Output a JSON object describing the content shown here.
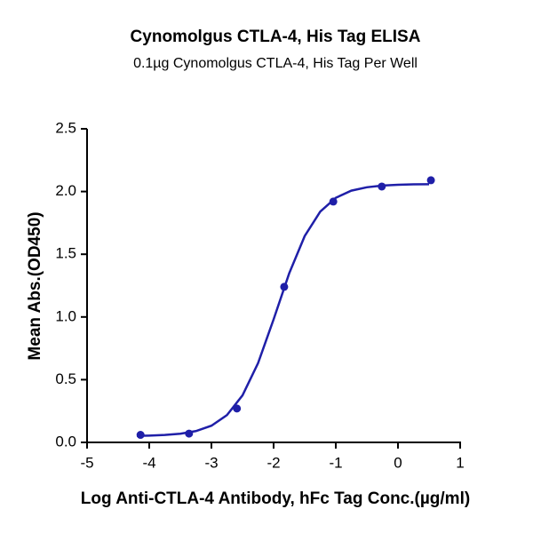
{
  "chart_data": {
    "type": "scatter",
    "title": "Cynomolgus CTLA-4, His Tag ELISA",
    "subtitle": "0.1µg Cynomolgus CTLA-4, His Tag Per Well",
    "x_label": "Log Anti-CTLA-4 Antibody, hFc Tag Conc.(µg/ml)",
    "y_label": "Mean Abs.(OD450)",
    "series": [
      {
        "color": "#1f1fa8",
        "marker": true,
        "line": false,
        "x": [
          -4.14,
          -3.36,
          -2.59,
          -1.83,
          -1.04,
          -0.26,
          0.53
        ],
        "values": [
          0.06,
          0.07,
          0.27,
          1.24,
          1.92,
          2.04,
          2.09
        ]
      },
      {
        "color": "#1f1fa8",
        "marker": false,
        "line": true,
        "x": [
          -4.2,
          -4.0,
          -3.75,
          -3.5,
          -3.25,
          -3.0,
          -2.75,
          -2.5,
          -2.25,
          -2.0,
          -1.75,
          -1.5,
          -1.25,
          -1.0,
          -0.75,
          -0.5,
          -0.25,
          0,
          0.25,
          0.5
        ],
        "values": [
          0.052,
          0.054,
          0.059,
          0.069,
          0.09,
          0.133,
          0.218,
          0.375,
          0.632,
          0.981,
          1.347,
          1.645,
          1.84,
          1.95,
          2.007,
          2.034,
          2.048,
          2.054,
          2.057,
          2.058
        ]
      }
    ],
    "xlim": [
      -5,
      1
    ],
    "xticks": [
      -5,
      -4,
      -3,
      -2,
      -1,
      0,
      1
    ],
    "ylim": [
      0,
      2.5
    ],
    "yticks": [
      {
        "value": 0,
        "label": "0.0"
      },
      0.5,
      {
        "value": 1,
        "label": "1.0"
      },
      1.5,
      {
        "value": 2,
        "label": "2.0"
      },
      2.5
    ],
    "grid": false
  }
}
